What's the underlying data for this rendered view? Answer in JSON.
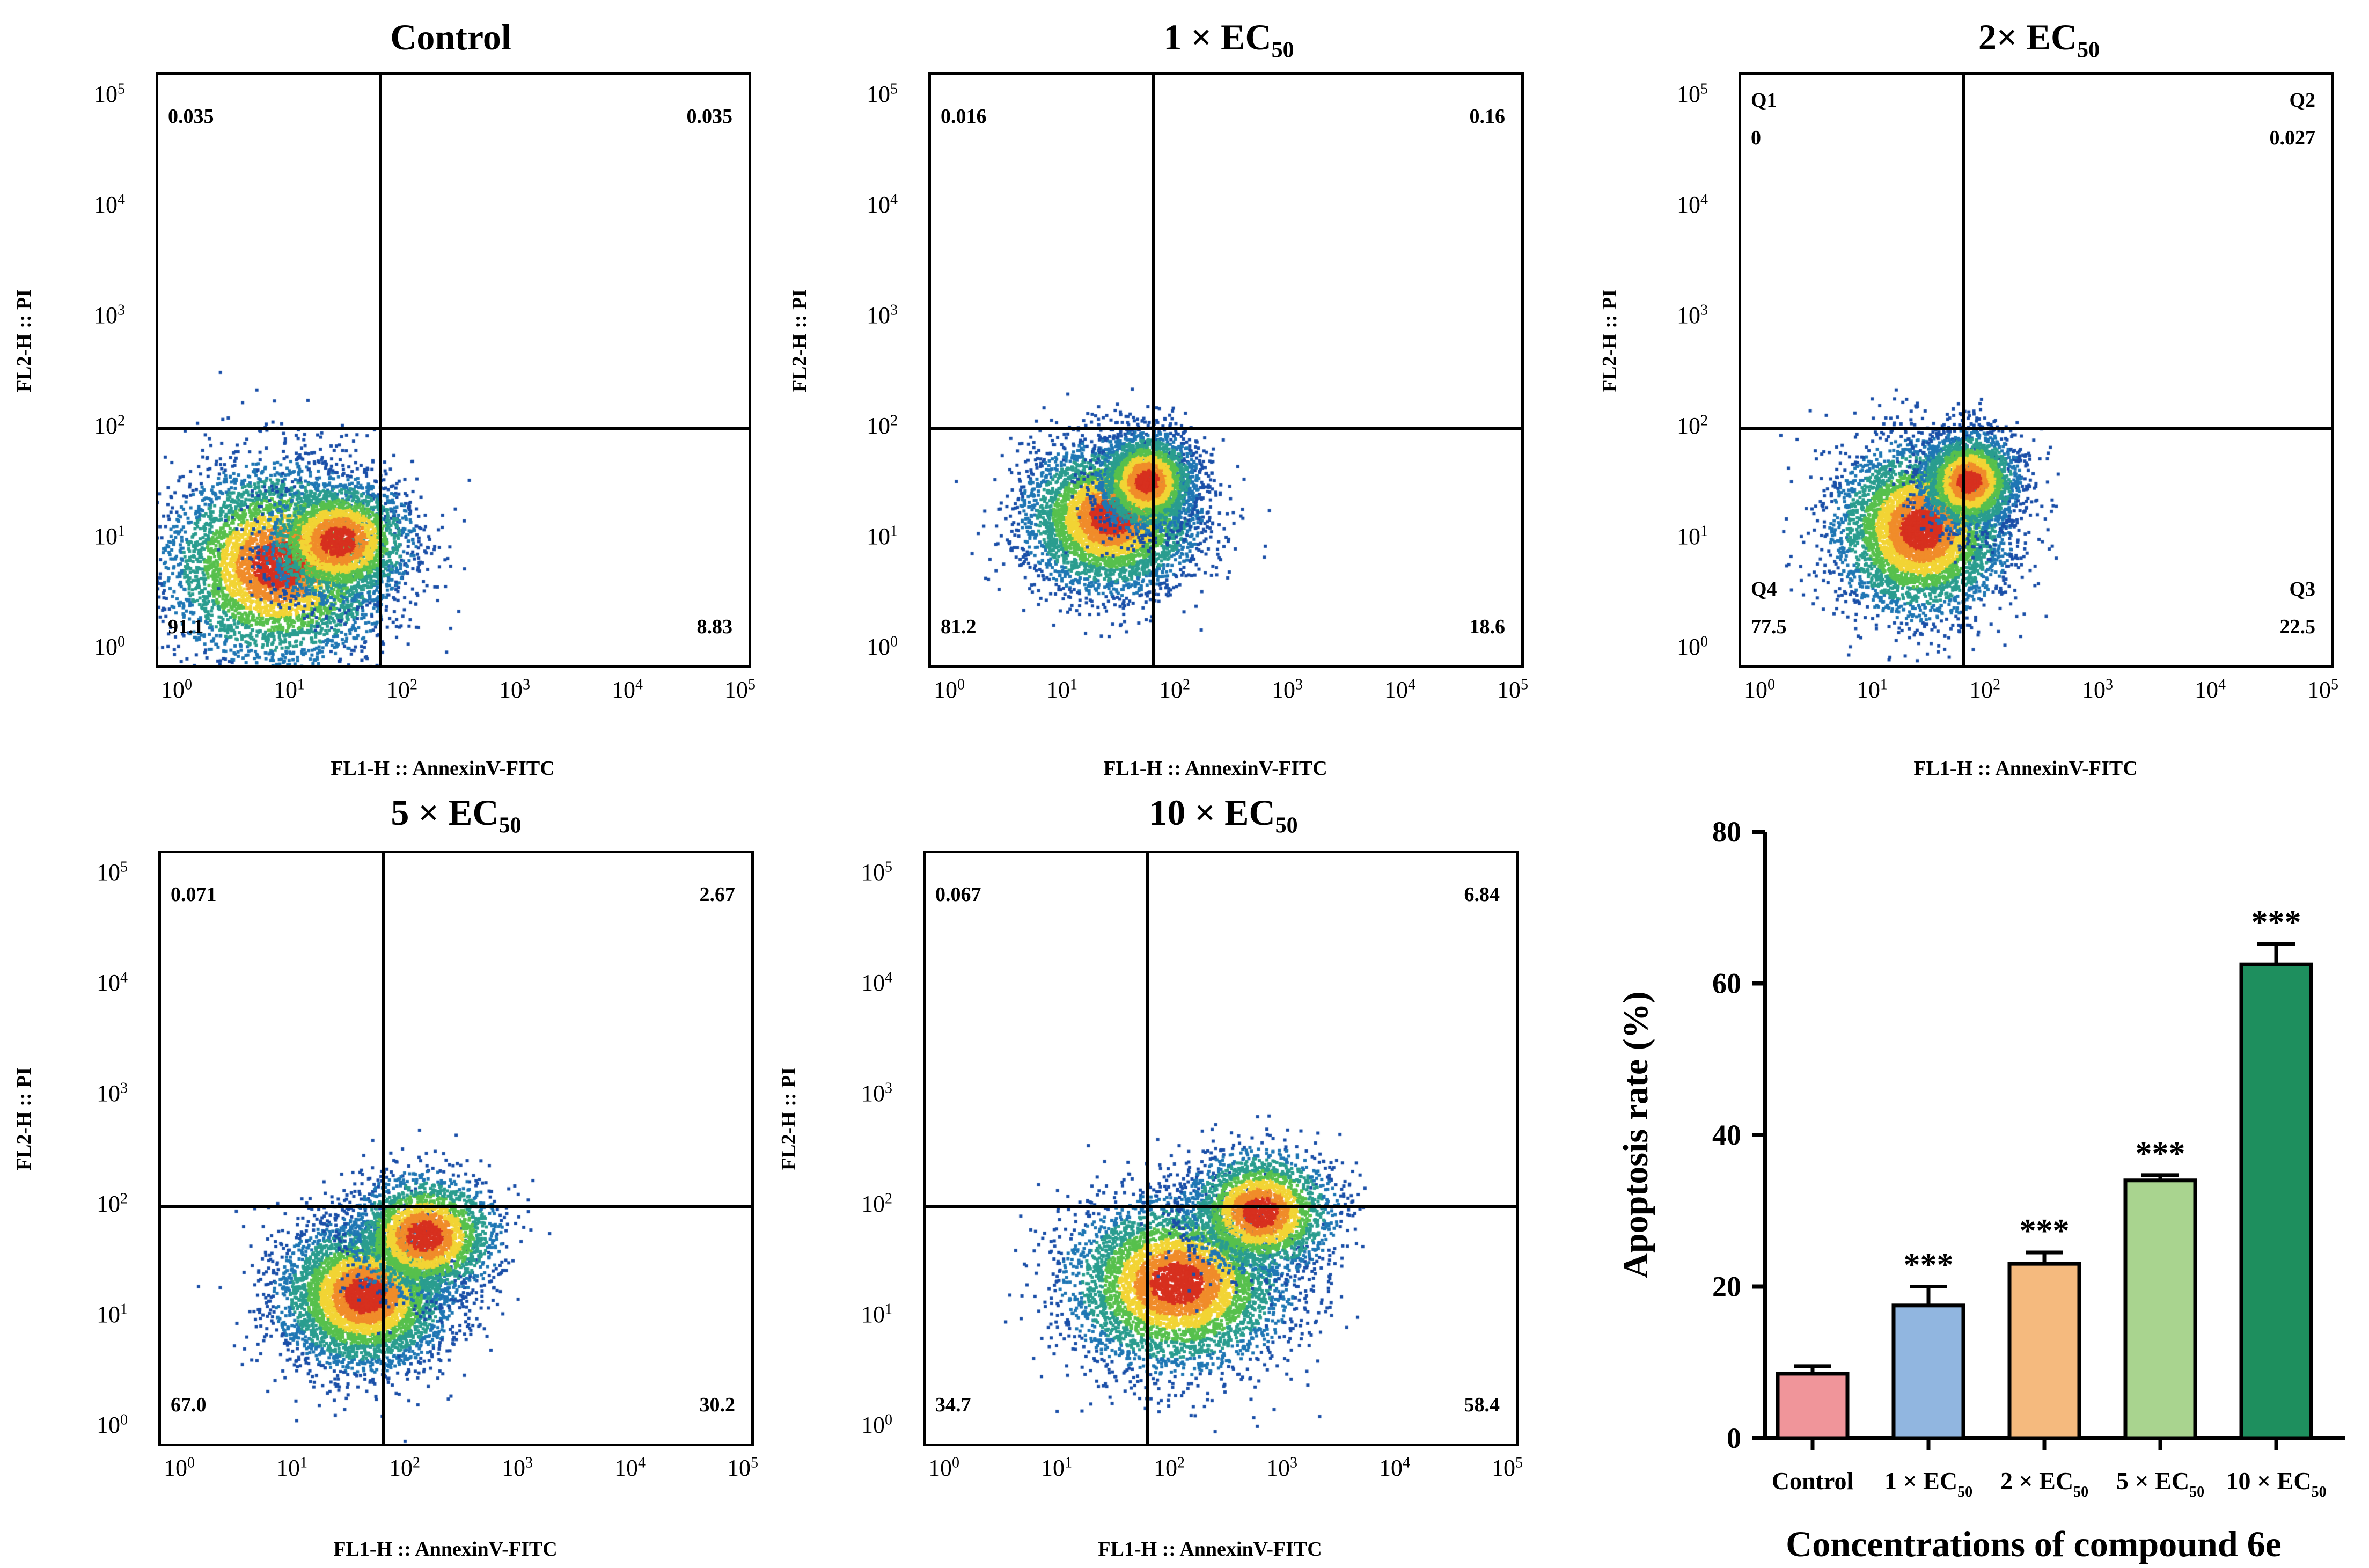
{
  "chart_data": [
    {
      "type": "scatter",
      "title": "Control",
      "title_sub": "",
      "xlabel": "FL1-H :: AnnexinV-FITC",
      "ylabel": "FL2-H :: PI",
      "x_ticks": [
        "10",
        "10",
        "10",
        "10",
        "10",
        "10"
      ],
      "x_tick_exp": [
        "0",
        "1",
        "2",
        "3",
        "4",
        "5"
      ],
      "y_ticks": [
        "10",
        "10",
        "10",
        "10",
        "10",
        "10"
      ],
      "y_tick_exp": [
        "0",
        "1",
        "2",
        "3",
        "4",
        "5"
      ],
      "quadrants": {
        "q1": "0.035",
        "q2": "0.035",
        "q3": "8.83",
        "q4": "91.1"
      },
      "quadrant_labels": {
        "q1": "",
        "q2": "",
        "q3": "",
        "q4": ""
      }
    },
    {
      "type": "scatter",
      "title": "1 × EC",
      "title_sub": "50",
      "xlabel": "FL1-H :: AnnexinV-FITC",
      "ylabel": "FL2-H :: PI",
      "x_ticks": [
        "10",
        "10",
        "10",
        "10",
        "10",
        "10"
      ],
      "x_tick_exp": [
        "0",
        "1",
        "2",
        "3",
        "4",
        "5"
      ],
      "y_ticks": [
        "10",
        "10",
        "10",
        "10",
        "10",
        "10"
      ],
      "y_tick_exp": [
        "0",
        "1",
        "2",
        "3",
        "4",
        "5"
      ],
      "quadrants": {
        "q1": "0.016",
        "q2": "0.16",
        "q3": "18.6",
        "q4": "81.2"
      },
      "quadrant_labels": {
        "q1": "",
        "q2": "",
        "q3": "",
        "q4": ""
      }
    },
    {
      "type": "scatter",
      "title": "2× EC",
      "title_sub": "50",
      "xlabel": "FL1-H :: AnnexinV-FITC",
      "ylabel": "FL2-H :: PI",
      "x_ticks": [
        "10",
        "10",
        "10",
        "10",
        "10",
        "10"
      ],
      "x_tick_exp": [
        "0",
        "1",
        "2",
        "3",
        "4",
        "5"
      ],
      "y_ticks": [
        "10",
        "10",
        "10",
        "10",
        "10",
        "10"
      ],
      "y_tick_exp": [
        "0",
        "1",
        "2",
        "3",
        "4",
        "5"
      ],
      "quadrants": {
        "q1": "0",
        "q2": "0.027",
        "q3": "22.5",
        "q4": "77.5"
      },
      "quadrant_labels": {
        "q1": "Q1",
        "q2": "Q2",
        "q3": "Q3",
        "q4": "Q4"
      }
    },
    {
      "type": "scatter",
      "title": "5 × EC",
      "title_sub": "50",
      "xlabel": "FL1-H :: AnnexinV-FITC",
      "ylabel": "FL2-H :: PI",
      "x_ticks": [
        "10",
        "10",
        "10",
        "10",
        "10",
        "10"
      ],
      "x_tick_exp": [
        "0",
        "1",
        "2",
        "3",
        "4",
        "5"
      ],
      "y_ticks": [
        "10",
        "10",
        "10",
        "10",
        "10",
        "10"
      ],
      "y_tick_exp": [
        "0",
        "1",
        "2",
        "3",
        "4",
        "5"
      ],
      "quadrants": {
        "q1": "0.071",
        "q2": "2.67",
        "q3": "30.2",
        "q4": "67.0"
      },
      "quadrant_labels": {
        "q1": "",
        "q2": "",
        "q3": "",
        "q4": ""
      }
    },
    {
      "type": "scatter",
      "title": "10 × EC",
      "title_sub": "50",
      "xlabel": "FL1-H :: AnnexinV-FITC",
      "ylabel": "FL2-H :: PI",
      "x_ticks": [
        "10",
        "10",
        "10",
        "10",
        "10",
        "10"
      ],
      "x_tick_exp": [
        "0",
        "1",
        "2",
        "3",
        "4",
        "5"
      ],
      "y_ticks": [
        "10",
        "10",
        "10",
        "10",
        "10",
        "10"
      ],
      "y_tick_exp": [
        "0",
        "1",
        "2",
        "3",
        "4",
        "5"
      ],
      "quadrants": {
        "q1": "0.067",
        "q2": "6.84",
        "q3": "58.4",
        "q4": "34.7"
      },
      "quadrant_labels": {
        "q1": "",
        "q2": "",
        "q3": "",
        "q4": ""
      }
    },
    {
      "type": "bar",
      "title": "",
      "xlabel": "Concentrations of compound 6e",
      "ylabel": "Apoptosis rate (%)",
      "ylim": [
        0,
        80
      ],
      "y_ticks": [
        "0",
        "20",
        "40",
        "60",
        "80"
      ],
      "categories": [
        "Control",
        "1 × EC",
        "2 × EC",
        "5 × EC",
        "10 × EC"
      ],
      "category_sub": [
        "",
        "50",
        "50",
        "50",
        "50"
      ],
      "values": [
        8.5,
        17.5,
        23,
        34,
        62.5
      ],
      "errors": [
        1.0,
        2.5,
        1.5,
        0.7,
        2.7
      ],
      "significance": [
        "",
        "***",
        "***",
        "***",
        "***"
      ],
      "colors": [
        "#F0959A",
        "#91B6E0",
        "#F5BA7E",
        "#A9D48F",
        "#1E8F5E"
      ]
    }
  ]
}
